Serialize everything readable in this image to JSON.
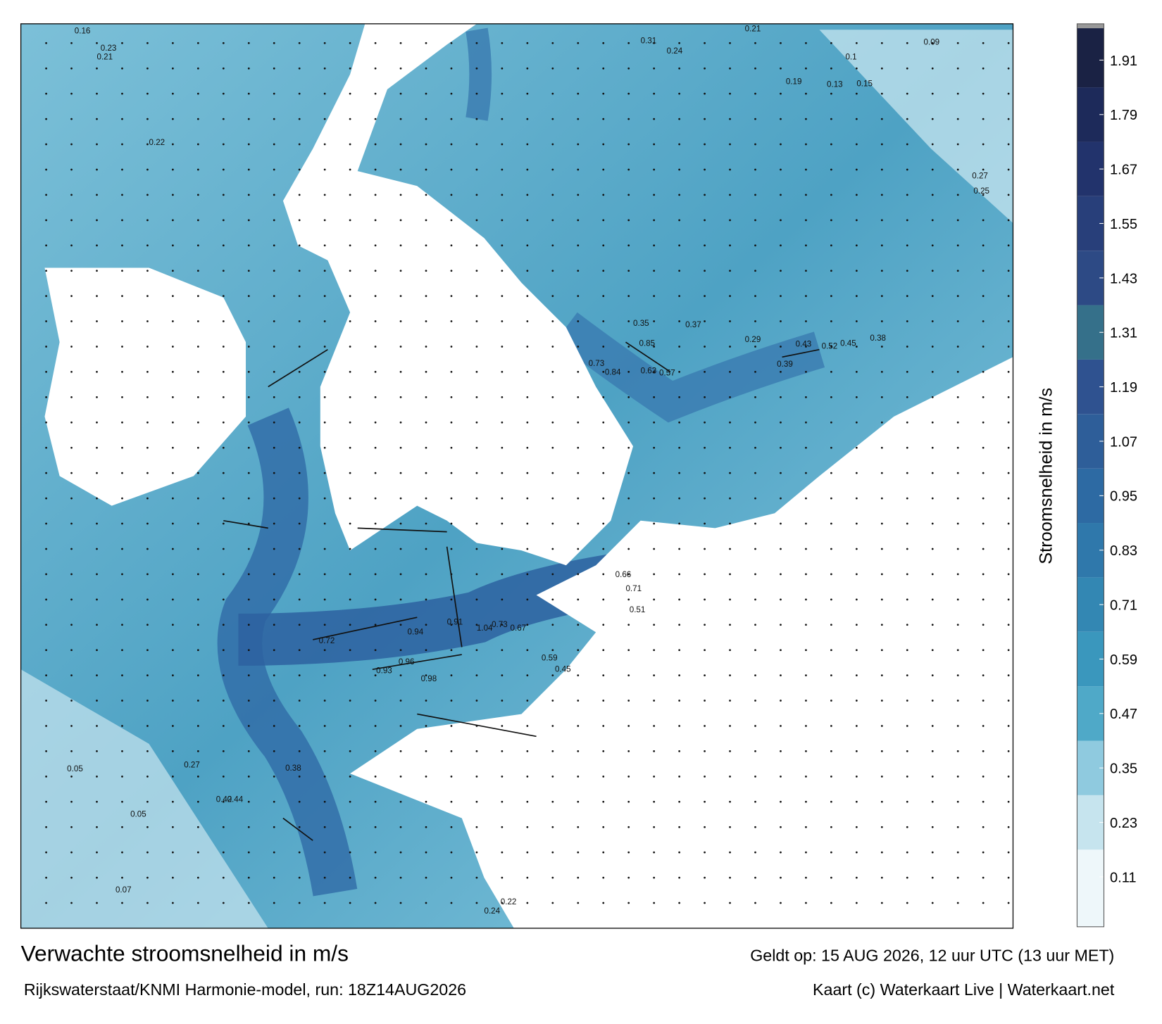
{
  "title": "Verwachte stroomsnelheid in m/s",
  "subtitle": "Rijkswaterstaat/KNMI Harmonie-model, run: 18Z14AUG2026",
  "valid": "Geldt op: 15 AUG 2026, 12 uur UTC (13 uur MET)",
  "credit": "Kaart (c) Waterkaart Live | Waterkaart.net",
  "colorbar": {
    "label": "Stroomsnelheid in m/s",
    "lim": [
      0,
      1.99
    ],
    "ticks": [
      0.11,
      0.23,
      0.35,
      0.47,
      0.59,
      0.71,
      0.83,
      0.95,
      1.07,
      1.19,
      1.31,
      1.43,
      1.55,
      1.67,
      1.79,
      1.91
    ]
  },
  "map_labels": [
    0.16,
    0.23,
    0.21,
    0.22,
    0.31,
    0.24,
    0.21,
    0.19,
    0.13,
    0.15,
    0.1,
    0.09,
    0.27,
    0.25,
    0.38,
    0.52,
    0.39,
    0.35,
    0.37,
    0.29,
    0.85,
    0.73,
    0.84,
    0.63,
    0.57,
    0.43,
    0.45,
    0.72,
    0.93,
    0.96,
    0.98,
    0.94,
    0.91,
    1.04,
    0.73,
    0.67,
    0.59,
    0.45,
    0.66,
    0.71,
    0.51,
    0.44,
    0.42,
    0.38,
    0.27,
    0.05,
    0.05,
    0.22,
    0.24,
    0.07
  ]
}
